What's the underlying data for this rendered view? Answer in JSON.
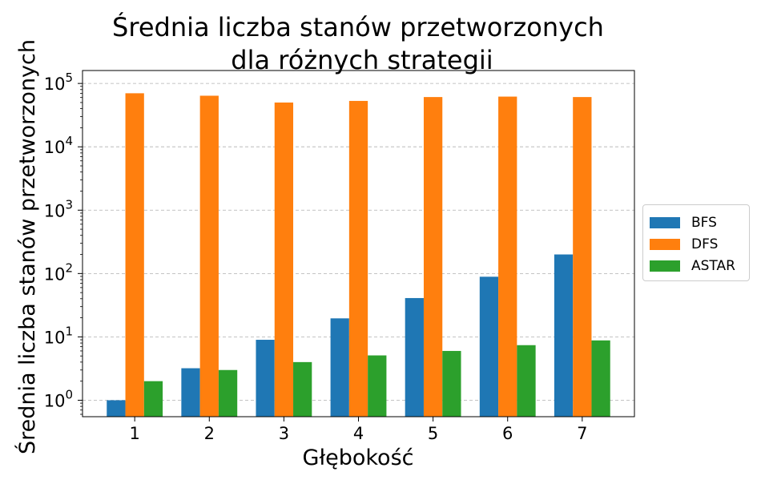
{
  "chart_data": {
    "type": "bar",
    "title": "Średnia liczba stanów przetworzonych\ndla różnych strategii",
    "title_lines": [
      "Średnia liczba stanów przetworzonych",
      "dla różnych strategii"
    ],
    "xlabel": "Głębokość",
    "ylabel": "Średnia liczba stanów przetworzonych",
    "categories": [
      "1",
      "2",
      "3",
      "4",
      "5",
      "6",
      "7"
    ],
    "series": [
      {
        "name": "BFS",
        "color": "#1f77b4",
        "values": [
          1.0,
          3.2,
          9.0,
          19.6,
          41.0,
          89.0,
          200.0
        ]
      },
      {
        "name": "DFS",
        "color": "#ff7f0e",
        "values": [
          70000,
          64000,
          50000,
          53000,
          61000,
          62000,
          61000
        ]
      },
      {
        "name": "ASTAR",
        "color": "#2ca02c",
        "values": [
          2.0,
          3.0,
          4.0,
          5.1,
          6.0,
          7.4,
          8.8
        ]
      }
    ],
    "y_scale": "log",
    "ylim": [
      0.55,
      160000
    ],
    "y_ticks": [
      {
        "value": 1,
        "base": "10",
        "exp": "0"
      },
      {
        "value": 10,
        "base": "10",
        "exp": "1"
      },
      {
        "value": 100,
        "base": "10",
        "exp": "2"
      },
      {
        "value": 1000,
        "base": "10",
        "exp": "3"
      },
      {
        "value": 10000,
        "base": "10",
        "exp": "4"
      },
      {
        "value": 100000,
        "base": "10",
        "exp": "5"
      }
    ],
    "grid": "y-dashed",
    "legend_position": "outside-right"
  }
}
